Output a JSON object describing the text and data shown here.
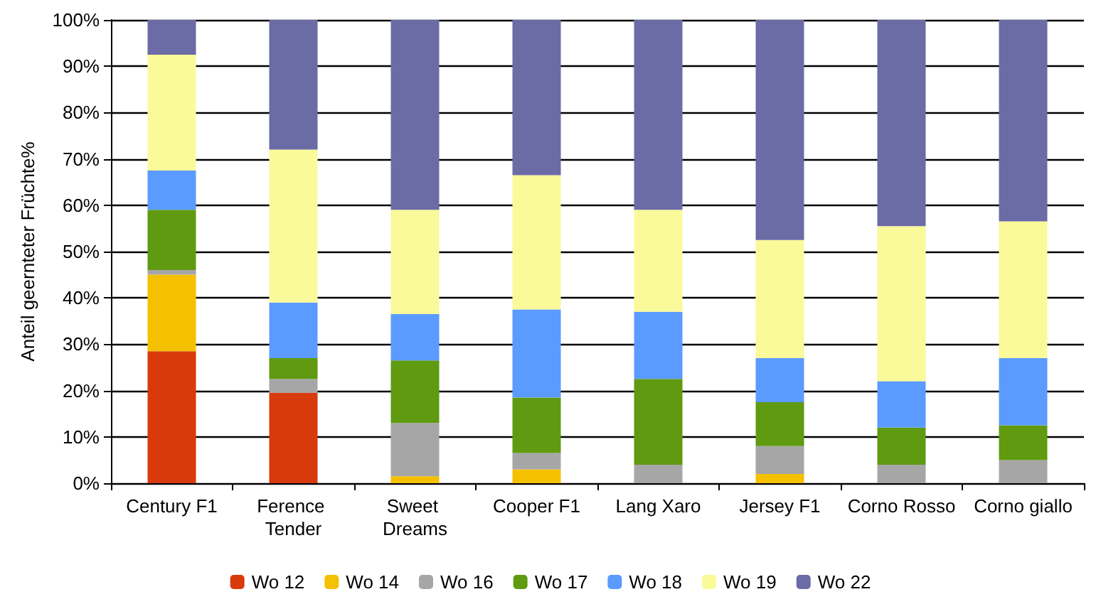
{
  "chart_data": {
    "type": "bar",
    "stacked": true,
    "ylabel": "Anteil geernteter Früchte%",
    "categories": [
      "Century F1",
      "Ference Tender",
      "Sweet Dreams",
      "Cooper F1",
      "Lang Xaro",
      "Jersey F1",
      "Corno Rosso",
      "Corno giallo"
    ],
    "series": [
      {
        "name": "Wo 12",
        "color": "#d83a0c",
        "values": [
          28.5,
          19.5,
          0,
          0,
          0,
          0,
          0,
          0
        ]
      },
      {
        "name": "Wo 14",
        "color": "#f5c000",
        "values": [
          16.5,
          0,
          1.5,
          3,
          0,
          2,
          0,
          0
        ]
      },
      {
        "name": "Wo 16",
        "color": "#a6a6a6",
        "values": [
          1,
          3,
          11.5,
          3.5,
          4,
          6,
          4,
          5
        ]
      },
      {
        "name": "Wo 17",
        "color": "#5f9a10",
        "values": [
          13,
          4.5,
          13.5,
          12,
          18.5,
          9.5,
          8,
          7.5
        ]
      },
      {
        "name": "Wo 18",
        "color": "#5b9bff",
        "values": [
          8.5,
          12,
          10,
          19,
          14.5,
          9.5,
          10,
          14.5
        ]
      },
      {
        "name": "Wo 19",
        "color": "#fafa9a",
        "values": [
          25,
          33,
          22.5,
          29,
          22,
          25.5,
          33.5,
          29.5
        ]
      },
      {
        "name": "Wo 22",
        "color": "#6b6ba5",
        "values": [
          7.5,
          28,
          41,
          33.5,
          41,
          47.5,
          44.5,
          43.5
        ]
      }
    ],
    "ylim": [
      0,
      100
    ],
    "yticks": [
      {
        "value": 0,
        "label": "0%"
      },
      {
        "value": 10,
        "label": "10%"
      },
      {
        "value": 20,
        "label": "20%"
      },
      {
        "value": 30,
        "label": "30%"
      },
      {
        "value": 40,
        "label": "40%"
      },
      {
        "value": 50,
        "label": "50%"
      },
      {
        "value": 60,
        "label": "60%"
      },
      {
        "value": 70,
        "label": "70%"
      },
      {
        "value": 80,
        "label": "80%"
      },
      {
        "value": 90,
        "label": "90%"
      },
      {
        "value": 100,
        "label": "100%"
      }
    ],
    "grid": "y",
    "legend": "bottom"
  }
}
